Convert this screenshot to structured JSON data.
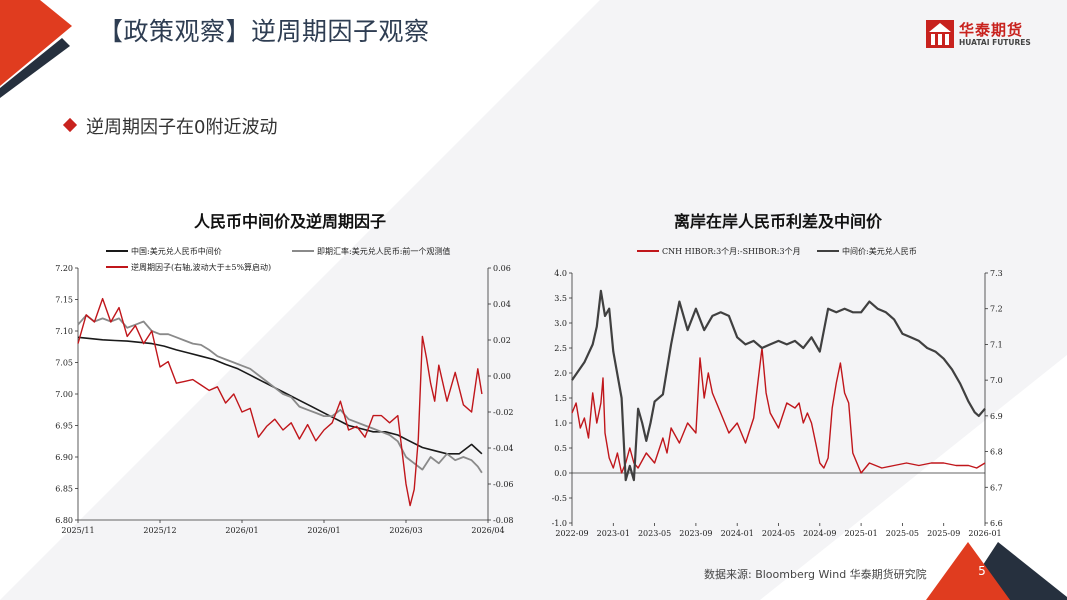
{
  "page": {
    "title": "【政策观察】逆周期因子观察",
    "bullet": "逆周期因子在0附近波动",
    "source": "数据来源:  Bloomberg Wind 华泰期货研究院",
    "page_number": "5",
    "logo_cn": "华泰期货",
    "logo_en": "HUATAI FUTURES"
  },
  "colors": {
    "brand_red": "#c8221e",
    "navy": "#26303e",
    "series_black": "#1a1a1a",
    "series_gray": "#8a8a8a",
    "series_red": "#c0161b",
    "series_dark": "#404040"
  },
  "chart_data": [
    {
      "type": "line",
      "title": "人民币中间价及逆周期因子",
      "x_ticks": [
        "2025/11",
        "2025/12",
        "2026/01",
        "2026/01",
        "2026/03",
        "2026/04"
      ],
      "y_left": {
        "lim": [
          6.8,
          7.2
        ],
        "ticks": [
          "6.80",
          "6.85",
          "6.90",
          "6.95",
          "7.00",
          "7.05",
          "7.10",
          "7.15",
          "7.20"
        ]
      },
      "y_right": {
        "lim": [
          -0.08,
          0.06
        ],
        "ticks": [
          "-0.08",
          "-0.06",
          "-0.04",
          "-0.02",
          "0.00",
          "0.02",
          "0.04",
          "0.06"
        ]
      },
      "legend_placement": "top",
      "grid": false,
      "series": [
        {
          "name": "中国:美元兑人民币中间价",
          "axis": "left",
          "color": "#1a1a1a",
          "x": [
            0,
            0.03,
            0.06,
            0.09,
            0.12,
            0.15,
            0.18,
            0.21,
            0.24,
            0.27,
            0.3,
            0.33,
            0.36,
            0.39,
            0.42,
            0.45,
            0.48,
            0.51,
            0.54,
            0.57,
            0.6,
            0.63,
            0.66,
            0.69,
            0.72,
            0.75,
            0.78,
            0.81,
            0.84,
            0.87,
            0.9,
            0.93,
            0.96,
            0.985
          ],
          "values": [
            7.09,
            7.088,
            7.086,
            7.085,
            7.084,
            7.082,
            7.08,
            7.076,
            7.07,
            7.065,
            7.06,
            7.055,
            7.047,
            7.04,
            7.03,
            7.02,
            7.01,
            7.0,
            6.99,
            6.98,
            6.97,
            6.96,
            6.95,
            6.945,
            6.94,
            6.94,
            6.935,
            6.925,
            6.915,
            6.91,
            6.905,
            6.905,
            6.92,
            6.905
          ]
        },
        {
          "name": "即期汇率:美元兑人民币:前一个观测值",
          "axis": "left",
          "color": "#8a8a8a",
          "x": [
            0,
            0.02,
            0.04,
            0.06,
            0.08,
            0.1,
            0.12,
            0.14,
            0.16,
            0.18,
            0.2,
            0.22,
            0.24,
            0.26,
            0.28,
            0.3,
            0.32,
            0.34,
            0.36,
            0.38,
            0.4,
            0.42,
            0.44,
            0.46,
            0.48,
            0.5,
            0.52,
            0.54,
            0.56,
            0.58,
            0.6,
            0.62,
            0.64,
            0.66,
            0.68,
            0.7,
            0.72,
            0.74,
            0.76,
            0.78,
            0.8,
            0.82,
            0.84,
            0.86,
            0.88,
            0.9,
            0.92,
            0.94,
            0.96,
            0.975,
            0.985
          ],
          "values": [
            7.11,
            7.125,
            7.115,
            7.12,
            7.115,
            7.12,
            7.105,
            7.11,
            7.115,
            7.1,
            7.095,
            7.095,
            7.09,
            7.085,
            7.08,
            7.078,
            7.07,
            7.06,
            7.055,
            7.05,
            7.045,
            7.04,
            7.03,
            7.02,
            7.01,
            7.0,
            6.995,
            6.98,
            6.975,
            6.97,
            6.965,
            6.965,
            6.975,
            6.96,
            6.955,
            6.95,
            6.945,
            6.94,
            6.935,
            6.925,
            6.9,
            6.89,
            6.88,
            6.9,
            6.89,
            6.905,
            6.895,
            6.9,
            6.895,
            6.885,
            6.875
          ]
        },
        {
          "name": "逆周期因子(右轴,波动大于±5%算启动)",
          "axis": "right",
          "color": "#c0161b",
          "x": [
            0,
            0.02,
            0.04,
            0.06,
            0.08,
            0.1,
            0.12,
            0.14,
            0.16,
            0.18,
            0.2,
            0.22,
            0.24,
            0.26,
            0.28,
            0.3,
            0.32,
            0.34,
            0.36,
            0.38,
            0.4,
            0.42,
            0.44,
            0.46,
            0.48,
            0.5,
            0.52,
            0.54,
            0.56,
            0.58,
            0.6,
            0.62,
            0.64,
            0.66,
            0.68,
            0.7,
            0.72,
            0.74,
            0.76,
            0.78,
            0.8,
            0.81,
            0.82,
            0.83,
            0.84,
            0.85,
            0.86,
            0.87,
            0.88,
            0.9,
            0.92,
            0.94,
            0.96,
            0.975,
            0.985
          ],
          "values": [
            0.018,
            0.034,
            0.03,
            0.043,
            0.03,
            0.038,
            0.022,
            0.028,
            0.018,
            0.025,
            0.005,
            0.008,
            -0.004,
            -0.003,
            -0.002,
            -0.005,
            -0.008,
            -0.006,
            -0.015,
            -0.01,
            -0.02,
            -0.018,
            -0.034,
            -0.028,
            -0.024,
            -0.03,
            -0.026,
            -0.035,
            -0.027,
            -0.036,
            -0.03,
            -0.026,
            -0.014,
            -0.03,
            -0.028,
            -0.034,
            -0.022,
            -0.022,
            -0.026,
            -0.022,
            -0.06,
            -0.072,
            -0.063,
            -0.035,
            0.022,
            0.01,
            -0.004,
            -0.014,
            0.006,
            -0.014,
            0.002,
            -0.016,
            -0.02,
            0.004,
            -0.01
          ]
        }
      ]
    },
    {
      "type": "line",
      "title": "离岸在岸人民币利差及中间价",
      "x_ticks": [
        "2022-09",
        "2023-01",
        "2023-05",
        "2023-09",
        "2024-01",
        "2024-05",
        "2024-09",
        "2025-01",
        "2025-05",
        "2025-09",
        "2026-01"
      ],
      "y_left": {
        "lim": [
          -1.0,
          4.0
        ],
        "ticks": [
          "-1.0",
          "-0.5",
          "0.0",
          "0.5",
          "1.0",
          "1.5",
          "2.0",
          "2.5",
          "3.0",
          "3.5",
          "4.0"
        ]
      },
      "y_right": {
        "lim": [
          6.6,
          7.3
        ],
        "ticks": [
          "6.6",
          "6.7",
          "6.8",
          "6.9",
          "7.0",
          "7.1",
          "7.2",
          "7.3"
        ]
      },
      "legend_placement": "top",
      "grid": false,
      "series": [
        {
          "name": "CNH HIBOR:3个月:-SHIBOR:3个月",
          "axis": "left",
          "color": "#c0161b",
          "x": [
            0,
            0.01,
            0.02,
            0.03,
            0.04,
            0.05,
            0.06,
            0.07,
            0.075,
            0.08,
            0.09,
            0.1,
            0.11,
            0.12,
            0.13,
            0.14,
            0.15,
            0.16,
            0.18,
            0.2,
            0.22,
            0.23,
            0.24,
            0.26,
            0.28,
            0.3,
            0.31,
            0.32,
            0.33,
            0.34,
            0.36,
            0.38,
            0.4,
            0.42,
            0.44,
            0.45,
            0.46,
            0.47,
            0.48,
            0.5,
            0.52,
            0.54,
            0.55,
            0.56,
            0.57,
            0.58,
            0.59,
            0.6,
            0.61,
            0.62,
            0.63,
            0.64,
            0.65,
            0.66,
            0.67,
            0.68,
            0.7,
            0.72,
            0.75,
            0.78,
            0.81,
            0.84,
            0.87,
            0.9,
            0.93,
            0.96,
            0.98,
            1.0
          ],
          "values": [
            1.2,
            1.4,
            0.9,
            1.1,
            0.7,
            1.6,
            1.0,
            1.4,
            1.9,
            0.8,
            0.3,
            0.1,
            0.4,
            0.0,
            0.2,
            0.5,
            0.2,
            0.1,
            0.4,
            0.2,
            0.7,
            0.4,
            0.9,
            0.6,
            1.0,
            0.8,
            2.3,
            1.5,
            2.0,
            1.6,
            1.2,
            0.8,
            1.0,
            0.6,
            1.1,
            1.8,
            2.5,
            1.6,
            1.2,
            0.9,
            1.4,
            1.3,
            1.4,
            1.0,
            1.2,
            1.0,
            0.6,
            0.2,
            0.1,
            0.3,
            1.3,
            1.8,
            2.2,
            1.6,
            1.4,
            0.4,
            0.0,
            0.2,
            0.1,
            0.15,
            0.2,
            0.15,
            0.2,
            0.2,
            0.15,
            0.15,
            0.1,
            0.2
          ]
        },
        {
          "name": "中间价:美元兑人民币",
          "axis": "right",
          "color": "#404040",
          "x": [
            0,
            0.03,
            0.05,
            0.06,
            0.07,
            0.08,
            0.09,
            0.1,
            0.12,
            0.13,
            0.14,
            0.15,
            0.16,
            0.17,
            0.18,
            0.19,
            0.2,
            0.22,
            0.24,
            0.26,
            0.28,
            0.3,
            0.32,
            0.34,
            0.36,
            0.38,
            0.4,
            0.42,
            0.44,
            0.46,
            0.48,
            0.5,
            0.52,
            0.54,
            0.56,
            0.58,
            0.6,
            0.62,
            0.64,
            0.66,
            0.68,
            0.7,
            0.72,
            0.74,
            0.76,
            0.78,
            0.8,
            0.82,
            0.84,
            0.86,
            0.88,
            0.9,
            0.92,
            0.94,
            0.96,
            0.975,
            0.985,
            1.0
          ],
          "values": [
            7.0,
            7.05,
            7.1,
            7.15,
            7.25,
            7.18,
            7.2,
            7.08,
            6.95,
            6.72,
            6.76,
            6.72,
            6.92,
            6.88,
            6.83,
            6.88,
            6.94,
            6.96,
            7.1,
            7.22,
            7.14,
            7.2,
            7.14,
            7.18,
            7.19,
            7.18,
            7.12,
            7.1,
            7.11,
            7.09,
            7.1,
            7.11,
            7.1,
            7.11,
            7.09,
            7.12,
            7.08,
            7.2,
            7.19,
            7.2,
            7.19,
            7.19,
            7.22,
            7.2,
            7.19,
            7.17,
            7.13,
            7.12,
            7.11,
            7.09,
            7.08,
            7.06,
            7.03,
            6.99,
            6.94,
            6.91,
            6.9,
            6.92
          ]
        }
      ]
    }
  ]
}
